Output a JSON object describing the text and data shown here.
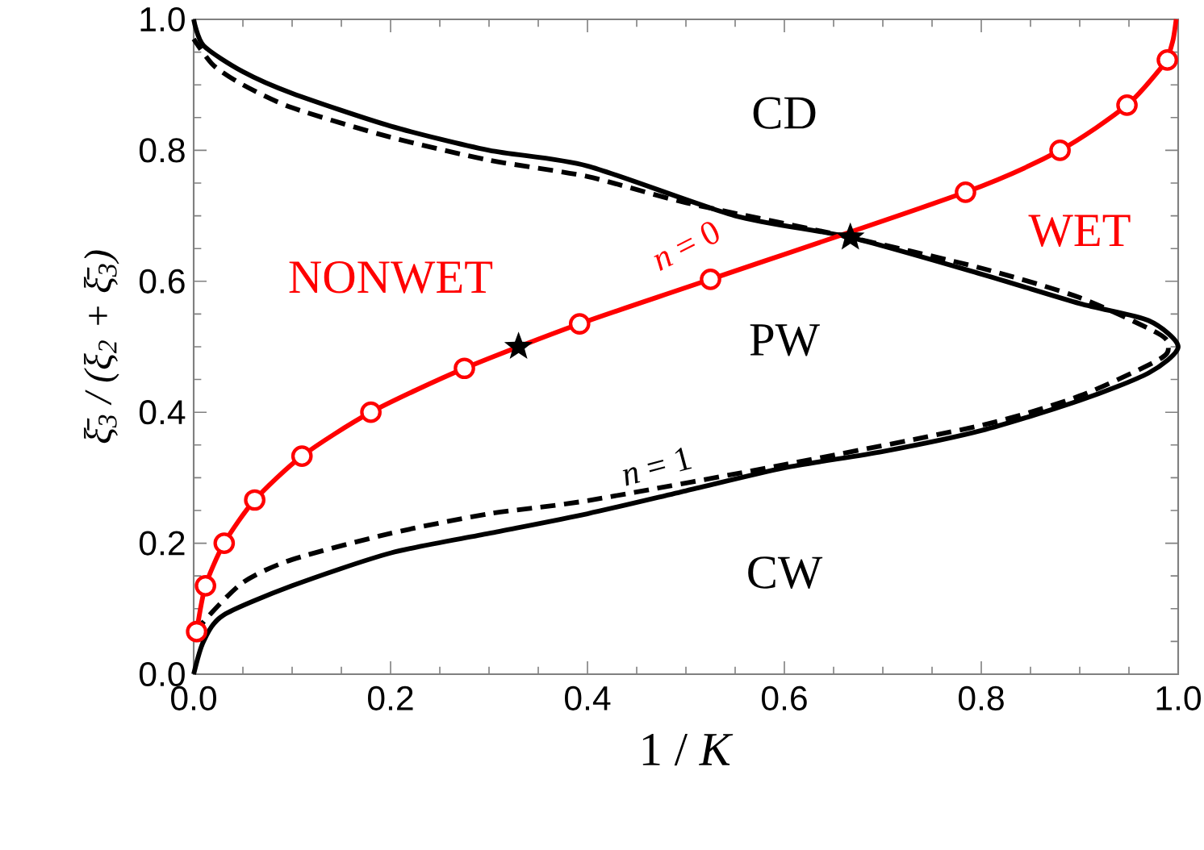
{
  "chart_data": {
    "type": "line",
    "xlabel": "1 / *K*",
    "ylabel": "ξ̄$_{3}$ / (ξ$_{2}$ + ξ̄$_{3}$)",
    "xlim": [
      0,
      1
    ],
    "ylim": [
      0,
      1
    ],
    "xticks": [
      {
        "value": 0,
        "label": "0.0"
      },
      {
        "value": 0.2,
        "label": "0.2"
      },
      {
        "value": 0.4,
        "label": "0.4"
      },
      {
        "value": 0.6,
        "label": "0.6"
      },
      {
        "value": 0.8,
        "label": "0.8"
      },
      {
        "value": 1,
        "label": "1.0"
      }
    ],
    "yticks": [
      {
        "value": 0,
        "label": "0.0"
      },
      {
        "value": 0.2,
        "label": "0.2"
      },
      {
        "value": 0.4,
        "label": "0.4"
      },
      {
        "value": 0.6,
        "label": "0.6"
      },
      {
        "value": 0.8,
        "label": "0.8"
      },
      {
        "value": 1,
        "label": "1.0"
      }
    ],
    "series": [
      {
        "color": "#000000",
        "line_style": "solid",
        "marker": "none",
        "x": [
          0,
          0.01,
          0.03,
          0.1,
          0.2,
          0.3,
          0.4,
          0.5,
          0.6,
          0.7,
          0.8,
          0.9,
          0.97,
          1,
          0.97,
          0.9,
          0.8,
          0.667,
          0.55,
          0.4,
          0.3,
          0.2,
          0.1,
          0.05,
          0.01,
          0
        ],
        "values": [
          0,
          0.05,
          0.09,
          0.135,
          0.185,
          0.215,
          0.245,
          0.28,
          0.315,
          0.34,
          0.372,
          0.418,
          0.46,
          0.5,
          0.54,
          0.566,
          0.611,
          0.667,
          0.7,
          0.776,
          0.8,
          0.837,
          0.887,
          0.92,
          0.96,
          1
        ]
      },
      {
        "color": "#000000",
        "line_style": "dashed",
        "marker": "none",
        "x": [
          0.005,
          0.01,
          0.05,
          0.1,
          0.2,
          0.3,
          0.4,
          0.6,
          0.8,
          0.9,
          0.98,
          0.99,
          0.98,
          0.9,
          0.8,
          0.667,
          0.5,
          0.4,
          0.3,
          0.2,
          0.1,
          0.05,
          0.02,
          0
        ],
        "values": [
          0.06,
          0.08,
          0.14,
          0.175,
          0.215,
          0.245,
          0.265,
          0.32,
          0.38,
          0.425,
          0.48,
          0.5,
          0.52,
          0.575,
          0.62,
          0.667,
          0.72,
          0.76,
          0.785,
          0.82,
          0.865,
          0.9,
          0.93,
          0.97
        ]
      },
      {
        "color": "#ff0000",
        "line_style": "solid",
        "marker": "circle",
        "x": [
          0.003,
          0.012,
          0.031,
          0.062,
          0.11,
          0.18,
          0.275,
          0.392,
          0.525,
          0.784,
          0.88,
          0.948,
          0.989
        ],
        "values": [
          0.065,
          0.135,
          0.2,
          0.266,
          0.333,
          0.4,
          0.467,
          0.535,
          0.603,
          0.736,
          0.8,
          0.869,
          0.938
        ]
      },
      {
        "color": "#ff0000",
        "line_style": "solid",
        "marker": "none",
        "x": [
          0.989,
          0.995,
          0.998
        ],
        "values": [
          0.938,
          0.97,
          1
        ]
      },
      {
        "type": "scatter",
        "color": "#000000",
        "marker": "star",
        "x": [
          0.33,
          0.667
        ],
        "values": [
          0.5,
          0.667
        ]
      }
    ],
    "annotations": [
      "CD",
      "PW",
      "CW",
      "NONWET",
      "WET",
      "*n* = 0",
      "*n* = 1"
    ]
  }
}
